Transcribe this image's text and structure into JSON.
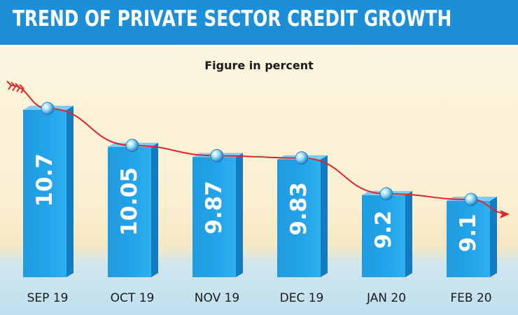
{
  "title": "TREND OF PRIVATE SECTOR CREDIT GROWTH",
  "subtitle": "Figure in percent",
  "colors": {
    "title_band": "#1d8fd8",
    "bar_front": "#24a4ea",
    "bar_side": "#137cc0",
    "bar_top": "#7ccdf5",
    "trend_line": "#e0252b"
  },
  "chart_data": {
    "type": "bar",
    "title": "TREND OF PRIVATE SECTOR CREDIT GROWTH",
    "subtitle": "Figure in percent",
    "categories": [
      "SEP 19",
      "OCT 19",
      "NOV 19",
      "DEC 19",
      "JAN 20",
      "FEB 20"
    ],
    "values": [
      10.7,
      10.05,
      9.87,
      9.83,
      9.2,
      9.1
    ],
    "value_labels": [
      "10.7",
      "10.05",
      "9.87",
      "9.83",
      "9.2",
      "9.1"
    ],
    "trend_line": true,
    "grid": false,
    "legend": "none"
  }
}
